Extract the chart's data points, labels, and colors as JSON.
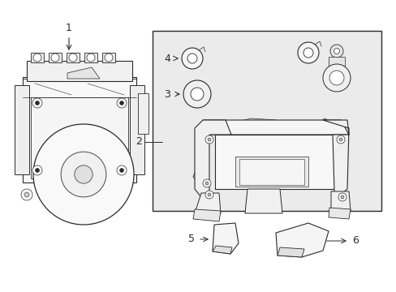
{
  "bg_color": "#ffffff",
  "line_color": "#2a2a2a",
  "box_fill": "#ebebeb",
  "figsize": [
    4.89,
    3.6
  ],
  "dpi": 100,
  "white": "#ffffff",
  "light_gray": "#f5f5f5",
  "mid_gray": "#d8d8d8"
}
